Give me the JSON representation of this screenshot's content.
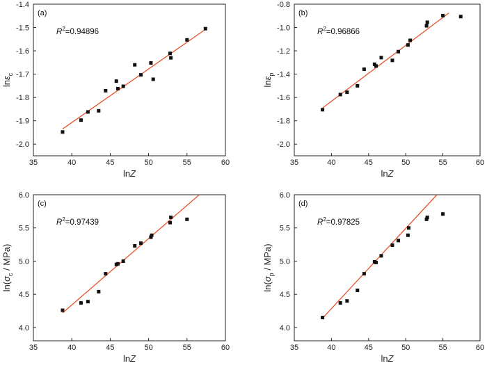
{
  "chart_data": [
    {
      "type": "scatter",
      "panel_label": "(a)",
      "r2_prefix": "R",
      "r2_sup": "2",
      "r2_value": "=0.94896",
      "xlabel": {
        "main": "ln",
        "italic": "Z",
        "sub": "",
        "tail": ""
      },
      "ylabel": {
        "main": "ln",
        "italic": "ε",
        "sub": "c",
        "tail": ""
      },
      "xlim": [
        35,
        60
      ],
      "ylim": [
        -2.05,
        -1.4
      ],
      "xticks": [
        35,
        40,
        45,
        50,
        55,
        60
      ],
      "yticks": [
        -2.0,
        -1.9,
        -1.8,
        -1.7,
        -1.6,
        -1.5,
        -1.4
      ],
      "yticklabels": [
        "-2.0",
        "-1.9",
        "-1.8",
        "-1.7",
        "-1.6",
        "-1.5",
        "-1.4"
      ],
      "fit_line": {
        "x": [
          38.8,
          57.4
        ],
        "y": [
          -1.935,
          -1.508
        ],
        "color": "#e8532a"
      },
      "points": {
        "x": [
          38.8,
          41.2,
          42.1,
          43.5,
          44.4,
          45.8,
          46.0,
          46.7,
          48.2,
          49.0,
          50.3,
          50.6,
          52.8,
          52.9,
          55.0,
          57.4
        ],
        "y": [
          -1.948,
          -1.897,
          -1.862,
          -1.857,
          -1.771,
          -1.73,
          -1.762,
          -1.752,
          -1.66,
          -1.703,
          -1.652,
          -1.722,
          -1.611,
          -1.63,
          -1.553,
          -1.505
        ]
      }
    },
    {
      "type": "scatter",
      "panel_label": "(b)",
      "r2_prefix": "R",
      "r2_sup": "2",
      "r2_value": "=0.96866",
      "xlabel": {
        "main": "ln",
        "italic": "Z",
        "sub": "",
        "tail": ""
      },
      "ylabel": {
        "main": "ln",
        "italic": "ε",
        "sub": "p",
        "tail": ""
      },
      "xlim": [
        35,
        60
      ],
      "ylim": [
        -2.1,
        -0.8
      ],
      "xticks": [
        35,
        40,
        45,
        50,
        55,
        60
      ],
      "yticks": [
        -2.0,
        -1.8,
        -1.6,
        -1.4,
        -1.2,
        -1.0,
        -0.8
      ],
      "yticklabels": [
        "-2.0",
        "-1.8",
        "-1.6",
        "-1.4",
        "-1.2",
        "-1.0",
        "-0.8"
      ],
      "fit_line": {
        "x": [
          38.8,
          55.8
        ],
        "y": [
          -1.69,
          -0.876
        ],
        "color": "#e8532a"
      },
      "points": {
        "x": [
          38.8,
          41.2,
          42.1,
          43.5,
          44.4,
          45.8,
          46.0,
          46.7,
          48.2,
          49.0,
          50.3,
          50.6,
          52.8,
          52.9,
          55.0,
          57.4
        ],
        "y": [
          -1.705,
          -1.575,
          -1.555,
          -1.5,
          -1.358,
          -1.315,
          -1.33,
          -1.258,
          -1.282,
          -1.207,
          -1.15,
          -1.11,
          -0.985,
          -0.955,
          -0.898,
          -0.906
        ]
      }
    },
    {
      "type": "scatter",
      "panel_label": "(c)",
      "r2_prefix": "R",
      "r2_sup": "2",
      "r2_value": "=0.97439",
      "xlabel": {
        "main": "ln",
        "italic": "Z",
        "sub": "",
        "tail": ""
      },
      "ylabel": {
        "main": "ln(",
        "italic": "σ",
        "sub": "c",
        "tail": " / MPa)"
      },
      "xlim": [
        35,
        60
      ],
      "ylim": [
        3.8,
        6.0
      ],
      "xticks": [
        35,
        40,
        45,
        50,
        55,
        60
      ],
      "yticks": [
        4.0,
        4.5,
        5.0,
        5.5,
        6.0
      ],
      "yticklabels": [
        "4.0",
        "4.5",
        "5.0",
        "5.5",
        "6.0"
      ],
      "fit_line": {
        "x": [
          38.8,
          56.6
        ],
        "y": [
          4.22,
          6.0
        ],
        "color": "#e8532a"
      },
      "points": {
        "x": [
          38.8,
          41.2,
          42.1,
          43.5,
          44.4,
          45.8,
          46.0,
          46.7,
          48.2,
          49.0,
          50.3,
          50.4,
          52.8,
          52.9,
          55.0
        ],
        "y": [
          4.26,
          4.37,
          4.39,
          4.54,
          4.81,
          4.95,
          4.96,
          5.0,
          5.23,
          5.27,
          5.36,
          5.39,
          5.58,
          5.66,
          5.63
        ]
      }
    },
    {
      "type": "scatter",
      "panel_label": "(d)",
      "r2_prefix": "R",
      "r2_sup": "2",
      "r2_value": "=0.97825",
      "xlabel": {
        "main": "ln",
        "italic": "Z",
        "sub": "",
        "tail": ""
      },
      "ylabel": {
        "main": "ln(",
        "italic": "σ",
        "sub": "p",
        "tail": " / MPa)"
      },
      "xlim": [
        35,
        60
      ],
      "ylim": [
        3.8,
        6.0
      ],
      "xticks": [
        35,
        40,
        45,
        50,
        55,
        60
      ],
      "yticks": [
        4.0,
        4.5,
        5.0,
        5.5,
        6.0
      ],
      "yticklabels": [
        "4.0",
        "4.5",
        "5.0",
        "5.5",
        "6.0"
      ],
      "fit_line": {
        "x": [
          38.8,
          54.2
        ],
        "y": [
          4.14,
          6.0
        ],
        "color": "#e8532a"
      },
      "points": {
        "x": [
          38.8,
          41.2,
          42.1,
          43.5,
          44.4,
          45.8,
          46.0,
          46.7,
          48.2,
          49.0,
          50.3,
          50.4,
          52.8,
          52.9,
          55.0
        ],
        "y": [
          4.15,
          4.37,
          4.4,
          4.56,
          4.81,
          4.99,
          4.98,
          5.08,
          5.24,
          5.31,
          5.39,
          5.5,
          5.63,
          5.66,
          5.71
        ]
      }
    }
  ]
}
